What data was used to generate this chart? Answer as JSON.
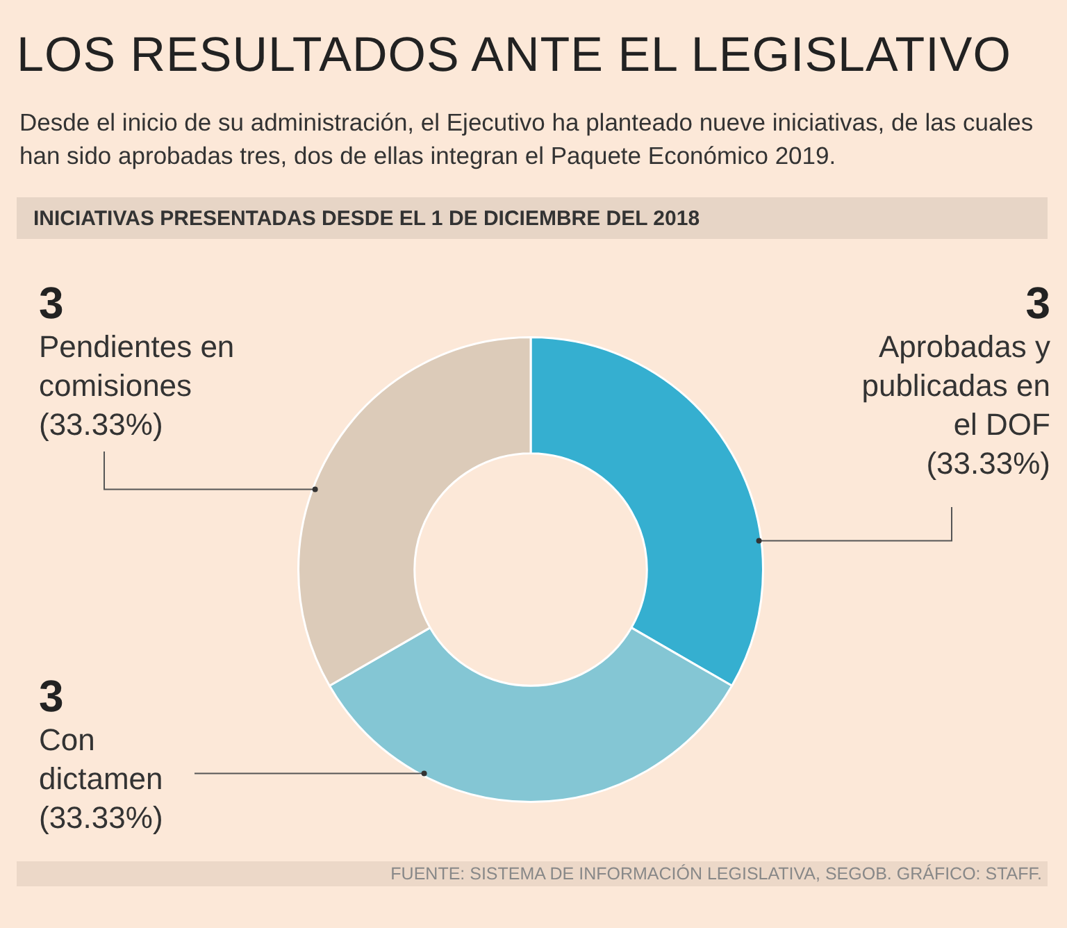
{
  "chart_data": {
    "type": "donut",
    "title": "LOS RESULTADOS ANTE EL LEGISLATIVO",
    "subtitle": "Desde el inicio de su administración, el Ejecutivo ha planteado nueve iniciativas, de las cuales han sido aprobadas tres, dos de ellas integran el Paquete Económico 2019.",
    "categories": [
      "Aprobadas y publicadas en el DOF (33.33%)",
      "Con dictamen (33.33%)",
      "Pendientes en comisiones (33.33%)"
    ],
    "values": [
      3,
      3,
      3
    ],
    "colors": [
      "#35afd0",
      "#84c6d4",
      "#dccbb9"
    ],
    "data_labels": true,
    "annotations": [
      "INICIATIVAS PRESENTADAS DESDE EL 1 DE DICIEMBRE DEL 2018",
      "FUENTE: SISTEMA DE INFORMACIÓN LEGISLATIVA, SEGOB. GRÁFICO: STAFF."
    ]
  }
}
